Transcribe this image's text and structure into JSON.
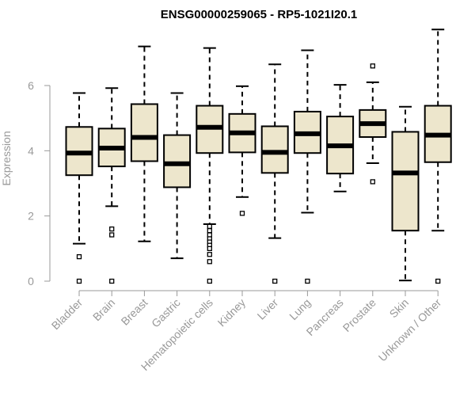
{
  "chart_data": {
    "type": "boxplot",
    "title": "ENSG00000259065 - RP5-1021I20.1",
    "ylabel": "Expression",
    "xlabel": "",
    "ylim": [
      0,
      7.8
    ],
    "yticks": [
      0,
      2,
      4,
      6
    ],
    "grid": false,
    "legend": "none",
    "box_fill": "#EDE6CC",
    "categories": [
      "Bladder",
      "Brain",
      "Breast",
      "Gastric",
      "Hematopoietic cells",
      "Kidney",
      "Liver",
      "Lung",
      "Pancreas",
      "Prostate",
      "Skin",
      "Unknown / Other"
    ],
    "boxes": [
      {
        "whisker_low": 1.15,
        "q1": 3.25,
        "median": 3.93,
        "q3": 4.73,
        "whisker_high": 5.77,
        "outliers": [
          0.75,
          0.0
        ]
      },
      {
        "whisker_low": 2.3,
        "q1": 3.52,
        "median": 4.08,
        "q3": 4.68,
        "whisker_high": 5.92,
        "outliers": [
          1.6,
          1.42,
          0.0
        ]
      },
      {
        "whisker_low": 1.22,
        "q1": 3.68,
        "median": 4.41,
        "q3": 5.43,
        "whisker_high": 7.2,
        "outliers": []
      },
      {
        "whisker_low": 0.7,
        "q1": 2.88,
        "median": 3.6,
        "q3": 4.48,
        "whisker_high": 5.77,
        "outliers": []
      },
      {
        "whisker_low": 1.75,
        "q1": 3.93,
        "median": 4.72,
        "q3": 5.38,
        "whisker_high": 7.15,
        "outliers": [
          1.68,
          1.55,
          1.42,
          1.3,
          1.2,
          1.1,
          1.0,
          0.82,
          0.6,
          0.0
        ]
      },
      {
        "whisker_low": 2.58,
        "q1": 3.95,
        "median": 4.55,
        "q3": 5.13,
        "whisker_high": 5.98,
        "outliers": [
          2.08
        ]
      },
      {
        "whisker_low": 1.32,
        "q1": 3.32,
        "median": 3.95,
        "q3": 4.75,
        "whisker_high": 6.65,
        "outliers": [
          0.0
        ]
      },
      {
        "whisker_low": 2.1,
        "q1": 3.93,
        "median": 4.52,
        "q3": 5.2,
        "whisker_high": 7.08,
        "outliers": [
          0.0
        ]
      },
      {
        "whisker_low": 2.75,
        "q1": 3.3,
        "median": 4.15,
        "q3": 5.05,
        "whisker_high": 6.02,
        "outliers": []
      },
      {
        "whisker_low": 3.62,
        "q1": 4.42,
        "median": 4.83,
        "q3": 5.25,
        "whisker_high": 6.1,
        "outliers": [
          6.6,
          3.05
        ]
      },
      {
        "whisker_low": 0.02,
        "q1": 1.55,
        "median": 3.32,
        "q3": 4.58,
        "whisker_high": 5.35,
        "outliers": []
      },
      {
        "whisker_low": 1.55,
        "q1": 3.65,
        "median": 4.48,
        "q3": 5.38,
        "whisker_high": 7.72,
        "outliers": [
          0.0
        ]
      }
    ]
  }
}
